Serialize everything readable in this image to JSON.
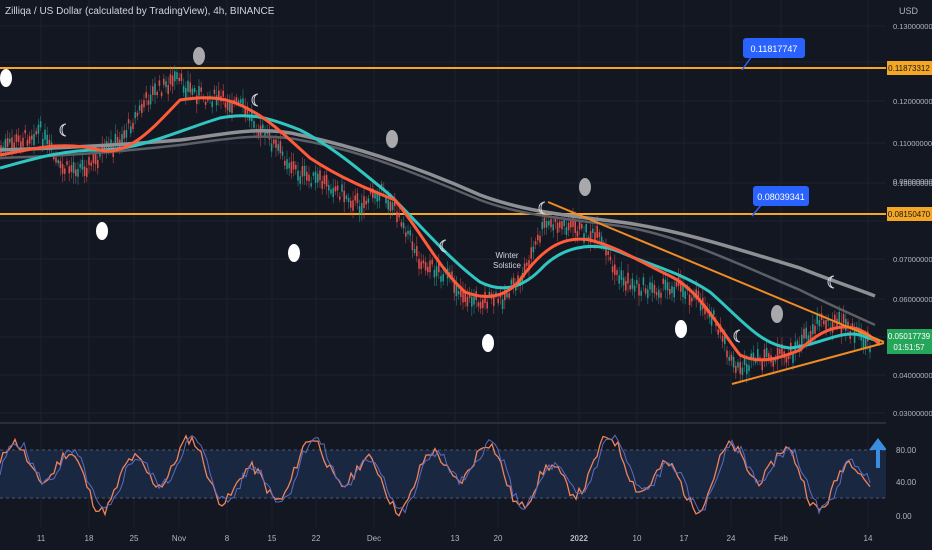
{
  "header": {
    "title": "Zilliqa / US Dollar (calculated by TradingView), 4h, BINANCE"
  },
  "price_axis": {
    "currency": "USD",
    "ticks": [
      "0.13000000",
      "0.12000000",
      "0.11000000",
      "0.10000000",
      "0.09000000",
      "0.07000000",
      "0.06000000",
      "0.04000000",
      "0.03000000"
    ],
    "level_labels": [
      "0.11873312",
      "0.08150470"
    ],
    "last_price": "0.05017739",
    "countdown": "01:51:57"
  },
  "callouts": [
    "0.11817747",
    "0.08039341"
  ],
  "event_label": {
    "line1": "Winter",
    "line2": "Solstice"
  },
  "oscillator_axis": {
    "ticks": [
      "80.00",
      "40.00",
      "0.00"
    ]
  },
  "time_axis": {
    "labels": [
      "11",
      "18",
      "25",
      "Nov",
      "8",
      "15",
      "22",
      "Dec",
      "13",
      "20",
      "2022",
      "10",
      "17",
      "24",
      "Feb",
      "14"
    ]
  },
  "colors": {
    "background": "#131722",
    "level_line": "#f5a623",
    "ema_fast": "#ff5b3a",
    "ema_mid": "#30c5c0",
    "ema_slow": "#9e9e9e",
    "trendline": "#f08c24",
    "callout": "#2962ff",
    "last_price_badge": "#26a65b",
    "oscillator_k": "#5c6bc0",
    "oscillator_d": "#f0845a",
    "up_arrow": "#3b8de0"
  },
  "icons": [
    "new-moon-icon",
    "full-moon-icon",
    "crescent-icon",
    "up-arrow-icon"
  ]
}
